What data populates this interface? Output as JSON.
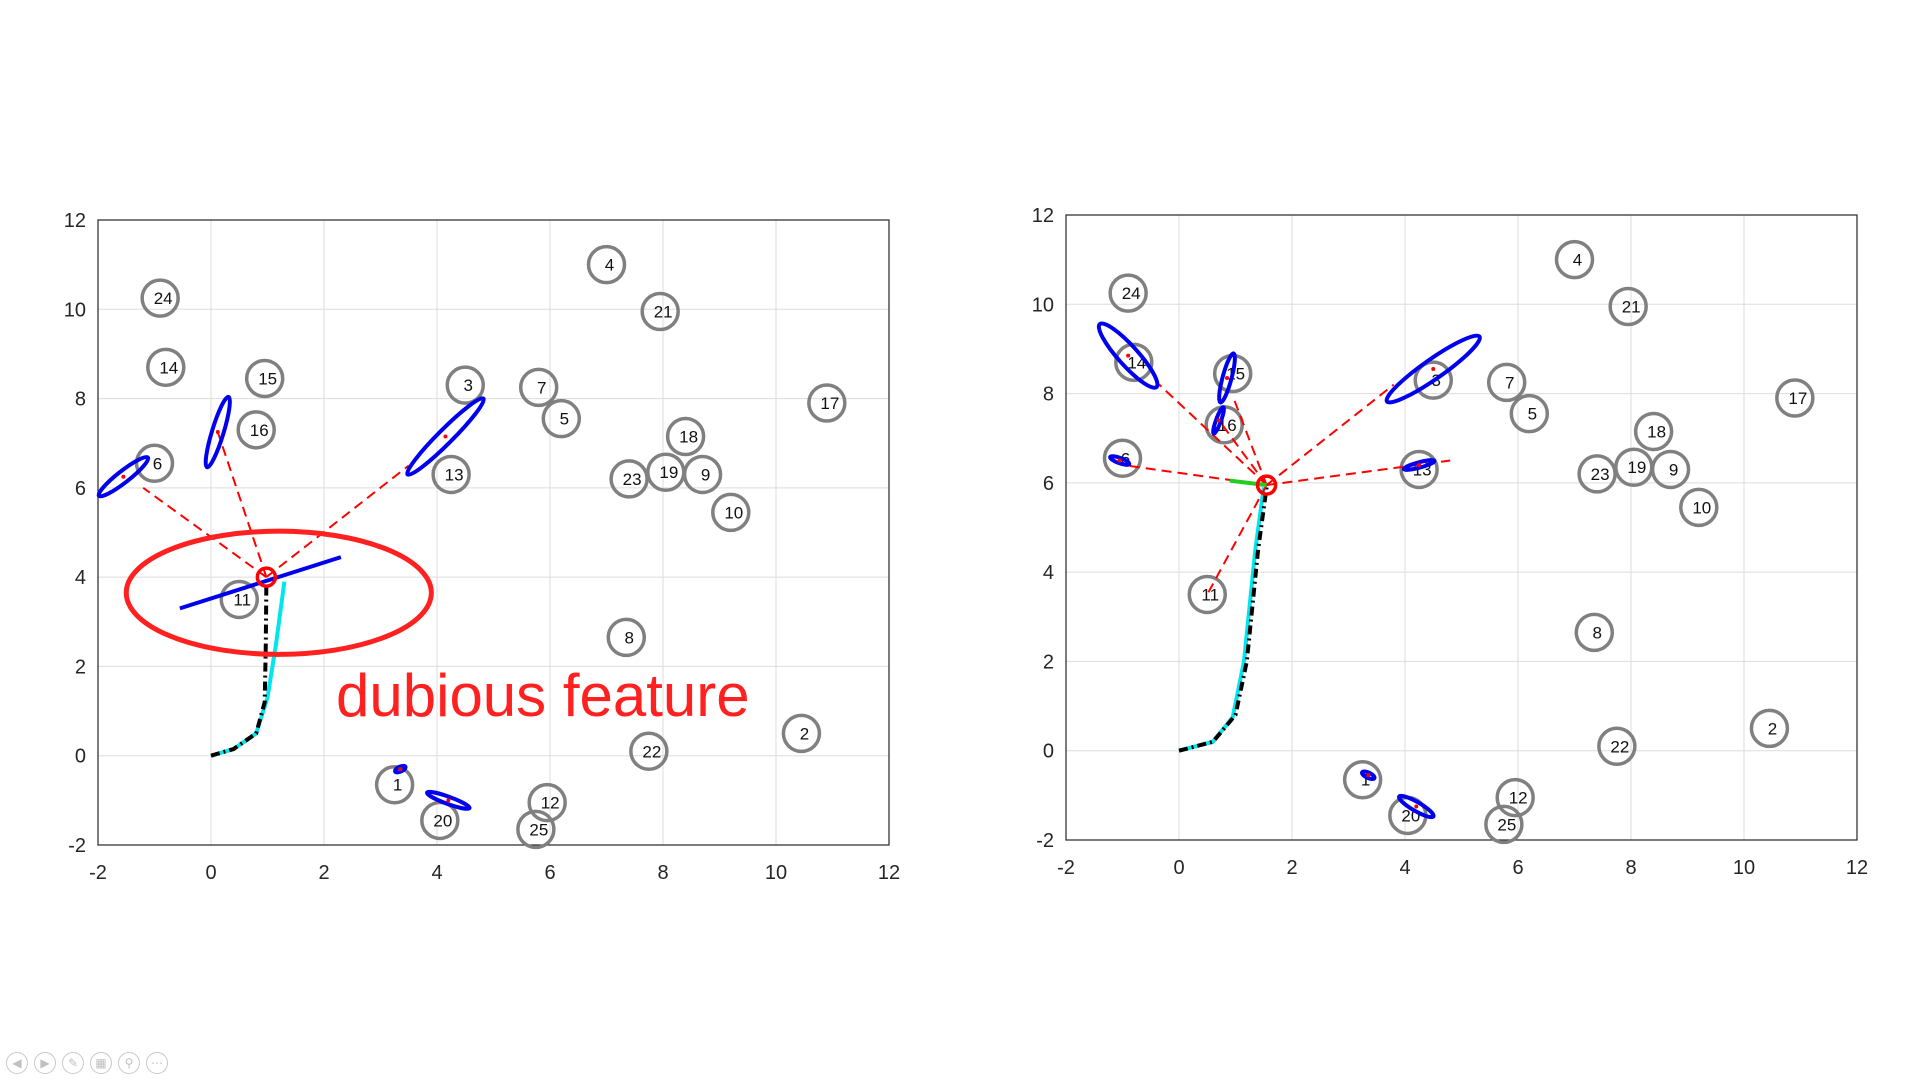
{
  "annotation": {
    "text": "dubious feature",
    "color": "#ff2020"
  },
  "colors": {
    "landmark": "#808080",
    "uncertainty": "#0000ee",
    "observation": "#ff0000",
    "true_path": "#00e5ee",
    "est_path": "#000000",
    "green": "#22cc22",
    "grid": "#dddddd"
  },
  "chart_data": [
    {
      "type": "scatter",
      "title": "",
      "xlabel": "",
      "ylabel": "",
      "xlim": [
        -2,
        12
      ],
      "ylim": [
        -2,
        12
      ],
      "xticks": [
        "-2",
        "0",
        "2",
        "4",
        "6",
        "8",
        "10",
        "12"
      ],
      "yticks": [
        "-2",
        "0",
        "2",
        "4",
        "6",
        "8",
        "10",
        "12"
      ],
      "grid": true,
      "landmarks": [
        {
          "id": "1",
          "x": 3.25,
          "y": -0.65
        },
        {
          "id": "2",
          "x": 10.45,
          "y": 0.5
        },
        {
          "id": "3",
          "x": 4.5,
          "y": 8.3
        },
        {
          "id": "4",
          "x": 7.0,
          "y": 11.0
        },
        {
          "id": "5",
          "x": 6.2,
          "y": 7.55
        },
        {
          "id": "6",
          "x": -1.0,
          "y": 6.55
        },
        {
          "id": "7",
          "x": 5.8,
          "y": 8.25
        },
        {
          "id": "8",
          "x": 7.35,
          "y": 2.65
        },
        {
          "id": "9",
          "x": 8.7,
          "y": 6.3
        },
        {
          "id": "10",
          "x": 9.2,
          "y": 5.45
        },
        {
          "id": "11",
          "x": 0.5,
          "y": 3.5
        },
        {
          "id": "12",
          "x": 5.95,
          "y": -1.05
        },
        {
          "id": "13",
          "x": 4.25,
          "y": 6.3
        },
        {
          "id": "14",
          "x": -0.8,
          "y": 8.7
        },
        {
          "id": "15",
          "x": 0.95,
          "y": 8.45
        },
        {
          "id": "16",
          "x": 0.8,
          "y": 7.3
        },
        {
          "id": "17",
          "x": 10.9,
          "y": 7.9
        },
        {
          "id": "18",
          "x": 8.4,
          "y": 7.15
        },
        {
          "id": "19",
          "x": 8.05,
          "y": 6.35
        },
        {
          "id": "20",
          "x": 4.05,
          "y": -1.45
        },
        {
          "id": "21",
          "x": 7.95,
          "y": 9.95
        },
        {
          "id": "22",
          "x": 7.75,
          "y": 0.1
        },
        {
          "id": "23",
          "x": 7.4,
          "y": 6.2
        },
        {
          "id": "24",
          "x": -0.9,
          "y": 10.25
        },
        {
          "id": "25",
          "x": 5.75,
          "y": -1.65
        }
      ],
      "estimated_path": [
        [
          0,
          0
        ],
        [
          0.4,
          0.15
        ],
        [
          0.8,
          0.5
        ],
        [
          0.95,
          1.2
        ],
        [
          0.97,
          2.5
        ],
        [
          0.98,
          4.0
        ]
      ],
      "true_path": [
        [
          0,
          0
        ],
        [
          0.4,
          0.15
        ],
        [
          0.8,
          0.5
        ],
        [
          1.0,
          1.3
        ],
        [
          1.15,
          2.5
        ],
        [
          1.3,
          3.9
        ]
      ],
      "robot": {
        "x": 0.98,
        "y": 4.0
      },
      "estimated_features": [
        {
          "x": -1.55,
          "y": 6.25,
          "rx": 0.55,
          "ry": 0.13,
          "angle": 38
        },
        {
          "x": 0.12,
          "y": 7.25,
          "rx": 0.65,
          "ry": 0.13,
          "angle": 73
        },
        {
          "x": 4.15,
          "y": 7.15,
          "rx": 0.95,
          "ry": 0.16,
          "angle": 45
        },
        {
          "x": 3.35,
          "y": -0.3,
          "rx": 0.1,
          "ry": 0.05,
          "angle": 25
        },
        {
          "x": 4.2,
          "y": -1.0,
          "rx": 0.4,
          "ry": 0.08,
          "angle": -20
        }
      ],
      "observations": [
        [
          -1.2,
          6.0
        ],
        [
          0.12,
          7.25
        ],
        [
          3.5,
          6.5
        ]
      ],
      "dubious_line": [
        [
          -0.55,
          3.3
        ],
        [
          2.3,
          4.45
        ]
      ],
      "highlight_ellipse": {
        "x": 1.2,
        "y": 3.65,
        "rx": 2.7,
        "ry": 1.38
      }
    },
    {
      "type": "scatter",
      "title": "",
      "xlabel": "",
      "ylabel": "",
      "xlim": [
        -2,
        12
      ],
      "ylim": [
        -2,
        12
      ],
      "xticks": [
        "-2",
        "0",
        "2",
        "4",
        "6",
        "8",
        "10",
        "12"
      ],
      "yticks": [
        "-2",
        "0",
        "2",
        "4",
        "6",
        "8",
        "10",
        "12"
      ],
      "grid": true,
      "landmarks": [
        {
          "id": "1",
          "x": 3.25,
          "y": -0.65
        },
        {
          "id": "2",
          "x": 10.45,
          "y": 0.5
        },
        {
          "id": "3",
          "x": 4.5,
          "y": 8.3
        },
        {
          "id": "4",
          "x": 7.0,
          "y": 11.0
        },
        {
          "id": "5",
          "x": 6.2,
          "y": 7.55
        },
        {
          "id": "6",
          "x": -1.0,
          "y": 6.55
        },
        {
          "id": "7",
          "x": 5.8,
          "y": 8.25
        },
        {
          "id": "8",
          "x": 7.35,
          "y": 2.65
        },
        {
          "id": "9",
          "x": 8.7,
          "y": 6.3
        },
        {
          "id": "10",
          "x": 9.2,
          "y": 5.45
        },
        {
          "id": "11",
          "x": 0.5,
          "y": 3.5
        },
        {
          "id": "12",
          "x": 5.95,
          "y": -1.05
        },
        {
          "id": "13",
          "x": 4.25,
          "y": 6.3
        },
        {
          "id": "14",
          "x": -0.8,
          "y": 8.7
        },
        {
          "id": "15",
          "x": 0.95,
          "y": 8.45
        },
        {
          "id": "16",
          "x": 0.8,
          "y": 7.3
        },
        {
          "id": "17",
          "x": 10.9,
          "y": 7.9
        },
        {
          "id": "18",
          "x": 8.4,
          "y": 7.15
        },
        {
          "id": "19",
          "x": 8.05,
          "y": 6.35
        },
        {
          "id": "20",
          "x": 4.05,
          "y": -1.45
        },
        {
          "id": "21",
          "x": 7.95,
          "y": 9.95
        },
        {
          "id": "22",
          "x": 7.75,
          "y": 0.1
        },
        {
          "id": "23",
          "x": 7.4,
          "y": 6.2
        },
        {
          "id": "24",
          "x": -0.9,
          "y": 10.25
        },
        {
          "id": "25",
          "x": 5.75,
          "y": -1.65
        }
      ],
      "estimated_path": [
        [
          0,
          0
        ],
        [
          0.6,
          0.2
        ],
        [
          1.0,
          0.8
        ],
        [
          1.2,
          2.0
        ],
        [
          1.4,
          4.5
        ],
        [
          1.55,
          5.9
        ]
      ],
      "true_path": [
        [
          0,
          0
        ],
        [
          0.6,
          0.2
        ],
        [
          0.95,
          0.75
        ],
        [
          1.15,
          2.0
        ],
        [
          1.35,
          4.5
        ],
        [
          1.5,
          5.9
        ]
      ],
      "robot": {
        "x": 1.55,
        "y": 5.95
      },
      "estimated_features": [
        {
          "x": -0.9,
          "y": 8.85,
          "rx": 0.75,
          "ry": 0.22,
          "angle": -48
        },
        {
          "x": 0.85,
          "y": 8.35,
          "rx": 0.45,
          "ry": 0.1,
          "angle": 75
        },
        {
          "x": 0.7,
          "y": 7.4,
          "rx": 0.25,
          "ry": 0.05,
          "angle": 70
        },
        {
          "x": -1.05,
          "y": 6.5,
          "rx": 0.18,
          "ry": 0.06,
          "angle": -20
        },
        {
          "x": 4.5,
          "y": 8.55,
          "rx": 1.0,
          "ry": 0.22,
          "angle": 35
        },
        {
          "x": 4.25,
          "y": 6.4,
          "rx": 0.28,
          "ry": 0.06,
          "angle": 15
        },
        {
          "x": 3.35,
          "y": -0.55,
          "rx": 0.12,
          "ry": 0.06,
          "angle": -25
        },
        {
          "x": 4.2,
          "y": -1.25,
          "rx": 0.35,
          "ry": 0.1,
          "angle": -30
        }
      ],
      "observations": [
        [
          -0.35,
          8.2
        ],
        [
          0.95,
          7.95
        ],
        [
          0.65,
          7.5
        ],
        [
          -1.0,
          6.4
        ],
        [
          3.8,
          8.2
        ],
        [
          4.8,
          6.5
        ],
        [
          0.5,
          3.5
        ]
      ],
      "green_segment": [
        [
          0.9,
          6.05
        ],
        [
          1.55,
          5.95
        ]
      ]
    }
  ]
}
